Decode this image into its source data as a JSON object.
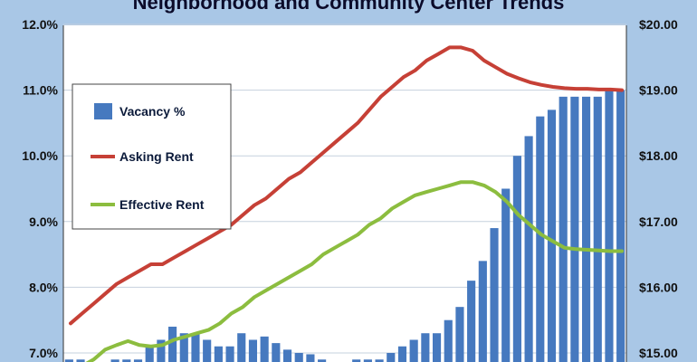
{
  "chart_data": {
    "type": "bar",
    "title": "Neighborhood and Community Center Trends",
    "colors": {
      "background": "#a9c7e6",
      "plot": "#ffffff",
      "grid": "#c6d1de",
      "bars": "#4679bf",
      "asking_rent": "#c64036",
      "effective_rent": "#8cbd3f"
    },
    "left_axis": {
      "ylim": [
        6.8,
        12.0
      ],
      "ticks": [
        "7.0%",
        "8.0%",
        "9.0%",
        "10.0%",
        "11.0%",
        "12.0%"
      ],
      "tick_values": [
        7,
        8,
        9,
        10,
        11,
        12
      ]
    },
    "right_axis": {
      "ylim": [
        14.8,
        20.0
      ],
      "ticks": [
        "$15.00",
        "$16.00",
        "$17.00",
        "$18.00",
        "$19.00",
        "$20.00"
      ],
      "tick_values": [
        15,
        16,
        17,
        18,
        19,
        20
      ]
    },
    "grid": true,
    "legend_position": "left",
    "legend": [
      "Vacancy %",
      "Asking Rent",
      "Effective Rent"
    ],
    "series": [
      {
        "name": "Vacancy %",
        "type": "bar",
        "axis": "left",
        "values": [
          6.9,
          6.9,
          6.8,
          6.8,
          6.9,
          6.9,
          6.9,
          7.1,
          7.2,
          7.4,
          7.3,
          7.3,
          7.2,
          7.1,
          7.1,
          7.3,
          7.2,
          7.25,
          7.15,
          7.05,
          7.0,
          6.98,
          6.9,
          6.85,
          6.85,
          6.9,
          6.9,
          6.9,
          7.0,
          7.1,
          7.2,
          7.3,
          7.3,
          7.5,
          7.7,
          8.1,
          8.4,
          8.9,
          9.5,
          10.0,
          10.3,
          10.6,
          10.7,
          10.9,
          10.9,
          10.9,
          10.9,
          11.0,
          11.0
        ]
      },
      {
        "name": "Asking Rent",
        "type": "line",
        "axis": "right",
        "values": [
          15.45,
          15.6,
          15.75,
          15.9,
          16.05,
          16.15,
          16.25,
          16.35,
          16.35,
          16.45,
          16.55,
          16.65,
          16.75,
          16.85,
          16.95,
          17.1,
          17.25,
          17.35,
          17.5,
          17.65,
          17.75,
          17.9,
          18.05,
          18.2,
          18.35,
          18.5,
          18.7,
          18.9,
          19.05,
          19.2,
          19.3,
          19.45,
          19.55,
          19.65,
          19.65,
          19.6,
          19.45,
          19.35,
          19.25,
          19.18,
          19.12,
          19.08,
          19.05,
          19.03,
          19.02,
          19.02,
          19.01,
          19.01,
          19.0
        ]
      },
      {
        "name": "Effective Rent",
        "type": "line",
        "axis": "right",
        "values": [
          14.7,
          14.8,
          14.9,
          15.05,
          15.12,
          15.18,
          15.12,
          15.1,
          15.12,
          15.2,
          15.25,
          15.3,
          15.35,
          15.45,
          15.6,
          15.7,
          15.85,
          15.95,
          16.05,
          16.15,
          16.25,
          16.35,
          16.5,
          16.6,
          16.7,
          16.8,
          16.95,
          17.05,
          17.2,
          17.3,
          17.4,
          17.45,
          17.5,
          17.55,
          17.6,
          17.6,
          17.55,
          17.45,
          17.3,
          17.1,
          16.95,
          16.8,
          16.7,
          16.6,
          16.58,
          16.57,
          16.56,
          16.55,
          16.55
        ]
      }
    ]
  }
}
